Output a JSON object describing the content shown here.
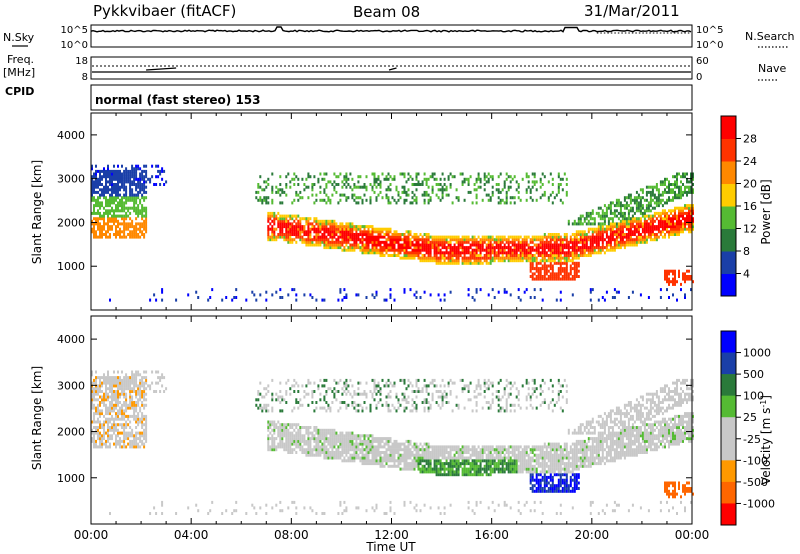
{
  "header": {
    "station": "Pykkvibaer (fitACF)",
    "beam": "Beam 08",
    "date": "31/Mar/2011"
  },
  "side_labels": {
    "nsky": "N.Sky",
    "nsearch": "N.Search",
    "freq": "Freq.",
    "freq_unit": "[MHz]",
    "nave": "Nave",
    "cpid": "CPID",
    "cpid_text": "normal (fast stereo) 153"
  },
  "small_axes": {
    "noise_left_ticks": [
      "10^5",
      "10^0"
    ],
    "noise_right_ticks": [
      "10^5",
      "10^0"
    ],
    "freq_left_ticks": [
      "18",
      "8"
    ],
    "freq_right_ticks": [
      "60",
      "0"
    ]
  },
  "colors": {
    "power_scale": [
      "#0000ff",
      "#1a3fa8",
      "#2a7a3a",
      "#55bb33",
      "#ffcc00",
      "#ff8800",
      "#ff3300",
      "#ff0000"
    ],
    "velocity_scale": [
      "#0000ff",
      "#1a3fa8",
      "#2a7a3a",
      "#55bb33",
      "#c8c8c8",
      "#c8c8c8",
      "#ff9900",
      "#ff6600",
      "#ff0000"
    ]
  },
  "chart_data": [
    {
      "type": "heatmap",
      "name": "power",
      "ylabel": "Slant Range [km]",
      "xlabel": "Time UT",
      "xlim": [
        "00:00",
        "24:00"
      ],
      "ylim": [
        0,
        4500
      ],
      "xticks": [
        "00:00",
        "04:00",
        "08:00",
        "12:00",
        "16:00",
        "20:00",
        "00:00"
      ],
      "yticks": [
        1000,
        2000,
        3000,
        4000
      ],
      "colorbar": {
        "label": "Power [dB]",
        "ticks": [
          4,
          8,
          12,
          16,
          20,
          24,
          28
        ],
        "range": [
          0,
          32
        ]
      }
    },
    {
      "type": "heatmap",
      "name": "velocity",
      "ylabel": "Slant Range [km]",
      "xlabel": "Time UT",
      "xlim": [
        "00:00",
        "24:00"
      ],
      "ylim": [
        0,
        4500
      ],
      "xticks": [
        "00:00",
        "04:00",
        "08:00",
        "12:00",
        "16:00",
        "20:00",
        "00:00"
      ],
      "yticks": [
        1000,
        2000,
        3000,
        4000
      ],
      "colorbar": {
        "label": "Velocity [m s",
        "label_sup": "-1",
        "label_close": "]",
        "ticks": [
          1000,
          500,
          100,
          25,
          -25,
          -100,
          -500,
          -1000
        ]
      }
    }
  ]
}
